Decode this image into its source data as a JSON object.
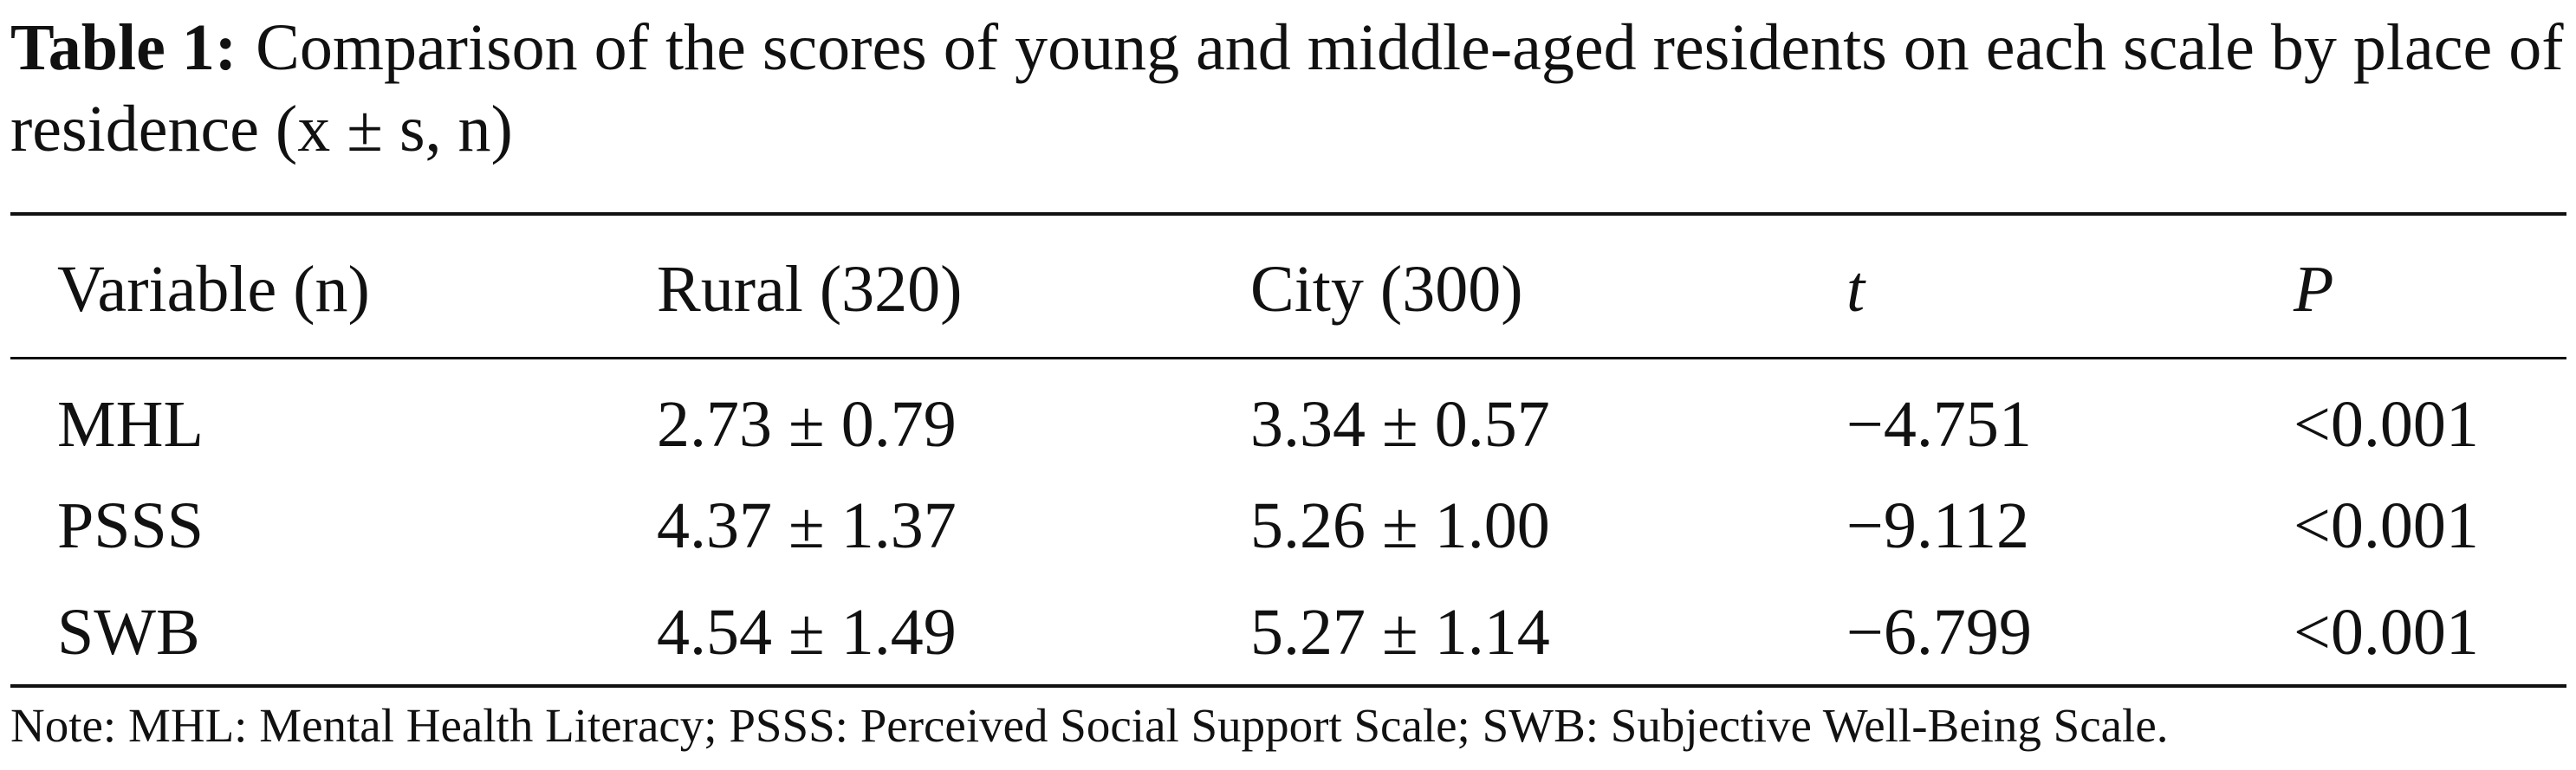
{
  "caption": {
    "label": "Table 1:",
    "text": "Comparison of the scores of young and middle-aged residents on each scale by place of residence (x ± s, n)"
  },
  "table": {
    "headers": [
      "Variable (n)",
      "Rural (320)",
      "City (300)",
      "t",
      "P"
    ],
    "rows": [
      [
        "MHL",
        "2.73 ± 0.79",
        "3.34 ± 0.57",
        "−4.751",
        "<0.001"
      ],
      [
        "PSSS",
        "4.37 ± 1.37",
        "5.26 ± 1.00",
        "−9.112",
        "<0.001"
      ],
      [
        "SWB",
        "4.54 ± 1.49",
        "5.27 ± 1.14",
        "−6.799",
        "<0.001"
      ]
    ]
  },
  "note": "Note: MHL: Mental Health Literacy; PSSS: Perceived Social Support Scale; SWB: Subjective Well-Being Scale."
}
